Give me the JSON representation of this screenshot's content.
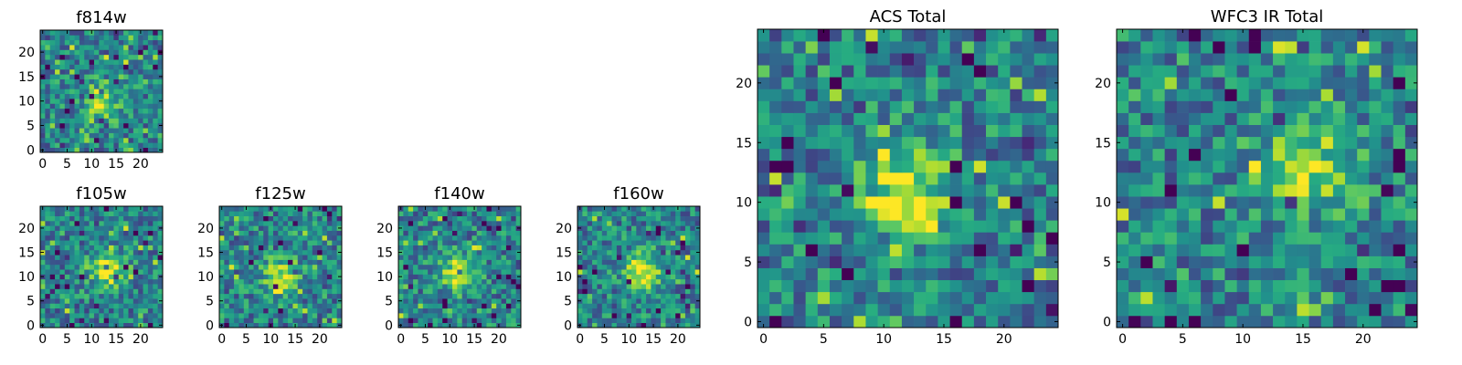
{
  "figure": {
    "description_free": true
  },
  "colors": {
    "viridis_low": "#440154",
    "viridis_mid": "#21918c",
    "viridis_high": "#fde725",
    "axes": "#000000",
    "background": "#ffffff"
  },
  "chart_data": [
    {
      "type": "heatmap",
      "title": "f814w",
      "grid_size": 25,
      "xticks": [
        0,
        5,
        10,
        15,
        20
      ],
      "yticks": [
        0,
        5,
        10,
        15,
        20
      ],
      "xlim": [
        0,
        25
      ],
      "ylim": [
        0,
        25
      ],
      "source_center": [
        12,
        10
      ],
      "source_peak": 0.78,
      "noise_seed": 11
    },
    {
      "type": "heatmap",
      "title": "f105w",
      "grid_size": 25,
      "xticks": [
        0,
        5,
        10,
        15,
        20
      ],
      "yticks": [
        0,
        5,
        10,
        15,
        20
      ],
      "xlim": [
        0,
        25
      ],
      "ylim": [
        0,
        25
      ],
      "source_center": [
        13,
        11
      ],
      "source_peak": 0.82,
      "noise_seed": 23
    },
    {
      "type": "heatmap",
      "title": "f125w",
      "grid_size": 25,
      "xticks": [
        0,
        5,
        10,
        15,
        20
      ],
      "yticks": [
        0,
        5,
        10,
        15,
        20
      ],
      "xlim": [
        0,
        25
      ],
      "ylim": [
        0,
        25
      ],
      "source_center": [
        12,
        10
      ],
      "source_peak": 0.8,
      "noise_seed": 37
    },
    {
      "type": "heatmap",
      "title": "f140w",
      "grid_size": 25,
      "xticks": [
        0,
        5,
        10,
        15,
        20
      ],
      "yticks": [
        0,
        5,
        10,
        15,
        20
      ],
      "xlim": [
        0,
        25
      ],
      "ylim": [
        0,
        25
      ],
      "source_center": [
        12,
        11
      ],
      "source_peak": 0.85,
      "noise_seed": 41
    },
    {
      "type": "heatmap",
      "title": "f160w",
      "grid_size": 25,
      "xticks": [
        0,
        5,
        10,
        15,
        20
      ],
      "yticks": [
        0,
        5,
        10,
        15,
        20
      ],
      "xlim": [
        0,
        25
      ],
      "ylim": [
        0,
        25
      ],
      "source_center": [
        13,
        11
      ],
      "source_peak": 0.9,
      "noise_seed": 53
    },
    {
      "type": "heatmap",
      "title": "ACS Total",
      "grid_size": 25,
      "xticks": [
        0,
        5,
        10,
        15,
        20
      ],
      "yticks": [
        0,
        5,
        10,
        15,
        20
      ],
      "xlim": [
        0,
        25
      ],
      "ylim": [
        0,
        25
      ],
      "source_center": [
        12,
        11
      ],
      "source_peak": 0.88,
      "noise_seed": 67
    },
    {
      "type": "heatmap",
      "title": "WFC3 IR Total",
      "grid_size": 25,
      "xticks": [
        0,
        5,
        10,
        15,
        20
      ],
      "yticks": [
        0,
        5,
        10,
        15,
        20
      ],
      "xlim": [
        0,
        25
      ],
      "ylim": [
        0,
        25
      ],
      "source_center": [
        15,
        13
      ],
      "source_peak": 0.8,
      "noise_seed": 79
    }
  ]
}
